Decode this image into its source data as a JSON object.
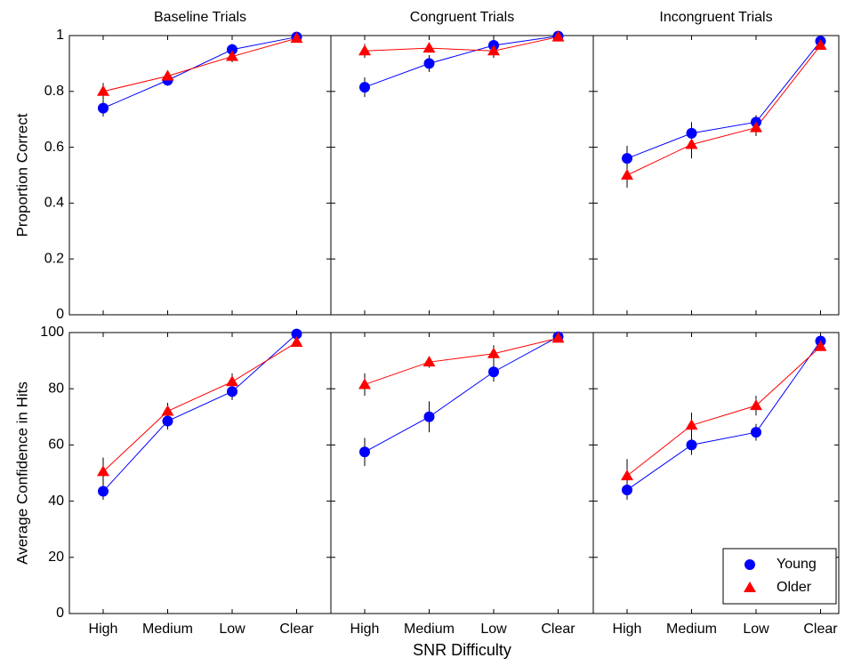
{
  "chart_data": [
    {
      "type": "line",
      "title": "Baseline Trials",
      "ylabel": "Proportion Correct",
      "ylim": [
        0,
        1
      ],
      "yticks": [
        0,
        0.2,
        0.4,
        0.6,
        0.8,
        1
      ],
      "series": [
        {
          "color": "#0000ff",
          "marker": "o",
          "values": [
            0.74,
            0.84,
            0.95,
            0.995
          ],
          "errors": [
            0.03,
            0.02,
            0.02,
            0.01
          ]
        },
        {
          "color": "#ff0000",
          "marker": "^",
          "values": [
            0.8,
            0.855,
            0.925,
            0.99
          ],
          "errors": [
            0.03,
            0.02,
            0.02,
            0.01
          ]
        }
      ]
    },
    {
      "type": "line",
      "title": "Congruent Trials",
      "ylim": [
        0,
        1
      ],
      "yticks": [
        0,
        0.2,
        0.4,
        0.6,
        0.8,
        1
      ],
      "series": [
        {
          "color": "#0000ff",
          "marker": "o",
          "values": [
            0.815,
            0.9,
            0.965,
            0.998
          ],
          "errors": [
            0.035,
            0.03,
            0.015,
            0.01
          ]
        },
        {
          "color": "#ff0000",
          "marker": "^",
          "values": [
            0.945,
            0.955,
            0.945,
            0.995
          ],
          "errors": [
            0.025,
            0.015,
            0.025,
            0.01
          ]
        }
      ]
    },
    {
      "type": "line",
      "title": "Incongruent Trials",
      "ylim": [
        0,
        1
      ],
      "yticks": [
        0,
        0.2,
        0.4,
        0.6,
        0.8,
        1
      ],
      "series": [
        {
          "color": "#0000ff",
          "marker": "o",
          "values": [
            0.56,
            0.65,
            0.69,
            0.98
          ],
          "errors": [
            0.045,
            0.04,
            0.025,
            0.015
          ]
        },
        {
          "color": "#ff0000",
          "marker": "^",
          "values": [
            0.5,
            0.61,
            0.67,
            0.965
          ],
          "errors": [
            0.045,
            0.05,
            0.03,
            0.015
          ]
        }
      ]
    },
    {
      "type": "line",
      "ylabel": "Average Confidence in Hits",
      "categories": [
        "High",
        "Medium",
        "Low",
        "Clear"
      ],
      "ylim": [
        0,
        100
      ],
      "yticks": [
        0,
        20,
        40,
        60,
        80,
        100
      ],
      "series": [
        {
          "color": "#0000ff",
          "marker": "o",
          "values": [
            43.5,
            68.5,
            79,
            99.5
          ],
          "errors": [
            3,
            3,
            3,
            0.5
          ]
        },
        {
          "color": "#ff0000",
          "marker": "^",
          "values": [
            50.5,
            72,
            82.5,
            96.5
          ],
          "errors": [
            5,
            3,
            3,
            1
          ]
        }
      ]
    },
    {
      "type": "line",
      "xlabel": "SNR Difficulty",
      "categories": [
        "High",
        "Medium",
        "Low",
        "Clear"
      ],
      "ylim": [
        0,
        100
      ],
      "yticks": [
        0,
        20,
        40,
        60,
        80,
        100
      ],
      "series": [
        {
          "color": "#0000ff",
          "marker": "o",
          "values": [
            57.5,
            70,
            86,
            98.5
          ],
          "errors": [
            5,
            5.5,
            3.5,
            1
          ]
        },
        {
          "color": "#ff0000",
          "marker": "^",
          "values": [
            81.5,
            89.5,
            92.5,
            98
          ],
          "errors": [
            4,
            2,
            3,
            1
          ]
        }
      ]
    },
    {
      "type": "line",
      "categories": [
        "High",
        "Medium",
        "Low",
        "Clear"
      ],
      "ylim": [
        0,
        100
      ],
      "yticks": [
        0,
        20,
        40,
        60,
        80,
        100
      ],
      "legend": "lower right",
      "series": [
        {
          "name": "Young",
          "color": "#0000ff",
          "marker": "o",
          "values": [
            44,
            60,
            64.5,
            97
          ],
          "errors": [
            3.5,
            3.5,
            3,
            1
          ]
        },
        {
          "name": "Older",
          "color": "#ff0000",
          "marker": "^",
          "values": [
            49,
            67,
            74,
            95
          ],
          "errors": [
            6,
            4.5,
            3.5,
            1
          ]
        }
      ]
    }
  ]
}
